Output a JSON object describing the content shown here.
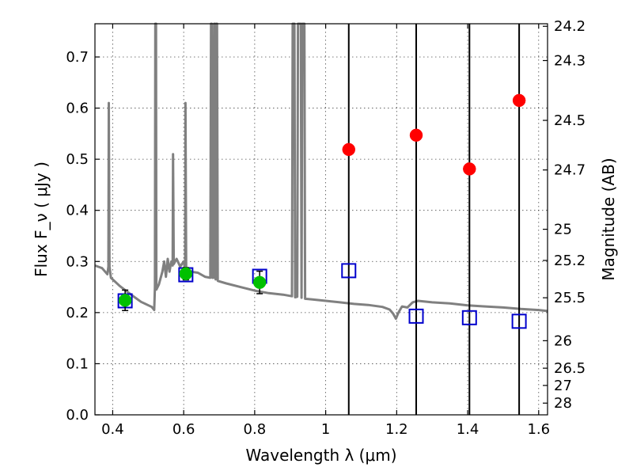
{
  "chart_data": {
    "type": "scatter",
    "title": "",
    "xlabel": "Wavelength  λ (μm)",
    "ylabel": "Flux  F_ν  ( μJy )",
    "ylabel_right": "Magnitude (AB)",
    "xlim": [
      0.35,
      1.625
    ],
    "ylim": [
      0.0,
      0.765
    ],
    "grid": true,
    "x_ticks": [
      {
        "value": 0.4,
        "label": "0.4"
      },
      {
        "value": 0.6,
        "label": "0.6"
      },
      {
        "value": 0.8,
        "label": "0.8"
      },
      {
        "value": 1.0,
        "label": "1"
      },
      {
        "value": 1.2,
        "label": "1.2"
      },
      {
        "value": 1.4,
        "label": "1.4"
      },
      {
        "value": 1.6,
        "label": "1.6"
      }
    ],
    "y_ticks": [
      {
        "value": 0.0,
        "label": "0.0"
      },
      {
        "value": 0.1,
        "label": "0.1"
      },
      {
        "value": 0.2,
        "label": "0.2"
      },
      {
        "value": 0.3,
        "label": "0.3"
      },
      {
        "value": 0.4,
        "label": "0.4"
      },
      {
        "value": 0.5,
        "label": "0.5"
      },
      {
        "value": 0.6,
        "label": "0.6"
      },
      {
        "value": 0.7,
        "label": "0.7"
      }
    ],
    "right_ticks": [
      {
        "label": "24.2",
        "flux": 0.76
      },
      {
        "label": "24.3",
        "flux": 0.693
      },
      {
        "label": "24.5",
        "flux": 0.576
      },
      {
        "label": "24.7",
        "flux": 0.479
      },
      {
        "label": "25",
        "flux": 0.363
      },
      {
        "label": "25.2",
        "flux": 0.302
      },
      {
        "label": "25.5",
        "flux": 0.229
      },
      {
        "label": "26",
        "flux": 0.145
      },
      {
        "label": "26.5",
        "flux": 0.0912
      },
      {
        "label": "27",
        "flux": 0.0575
      },
      {
        "label": "28",
        "flux": 0.0229
      }
    ],
    "vertical_lines": [
      1.065,
      1.255,
      1.405,
      1.545
    ],
    "series": [
      {
        "marker": "square-open",
        "color": "#0000cc",
        "points": [
          {
            "x": 0.435,
            "y": 0.223
          },
          {
            "x": 0.606,
            "y": 0.274
          },
          {
            "x": 0.814,
            "y": 0.271
          },
          {
            "x": 1.065,
            "y": 0.282
          },
          {
            "x": 1.255,
            "y": 0.193
          },
          {
            "x": 1.405,
            "y": 0.19
          },
          {
            "x": 1.545,
            "y": 0.183
          }
        ]
      },
      {
        "marker": "circle-filled",
        "color": "#00c000",
        "points": [
          {
            "x": 0.435,
            "y": 0.224,
            "yerr": 0.02
          },
          {
            "x": 0.606,
            "y": 0.276,
            "yerr": 0.012
          },
          {
            "x": 0.814,
            "y": 0.259,
            "yerr": 0.022
          }
        ]
      },
      {
        "marker": "circle-filled",
        "color": "#ff0000",
        "points": [
          {
            "x": 1.065,
            "y": 0.519
          },
          {
            "x": 1.255,
            "y": 0.547
          },
          {
            "x": 1.405,
            "y": 0.481
          },
          {
            "x": 1.545,
            "y": 0.615
          }
        ]
      },
      {
        "marker": "line",
        "color": "#808080",
        "points": [
          [
            0.35,
            0.292
          ],
          [
            0.37,
            0.287
          ],
          [
            0.385,
            0.275
          ],
          [
            0.388,
            0.29
          ],
          [
            0.389,
            0.61
          ],
          [
            0.391,
            0.29
          ],
          [
            0.395,
            0.268
          ],
          [
            0.42,
            0.252
          ],
          [
            0.45,
            0.236
          ],
          [
            0.48,
            0.221
          ],
          [
            0.51,
            0.211
          ],
          [
            0.517,
            0.205
          ],
          [
            0.519,
            0.25
          ],
          [
            0.52,
            0.765
          ],
          [
            0.522,
            0.765
          ],
          [
            0.523,
            0.245
          ],
          [
            0.53,
            0.255
          ],
          [
            0.54,
            0.28
          ],
          [
            0.545,
            0.3
          ],
          [
            0.55,
            0.27
          ],
          [
            0.555,
            0.305
          ],
          [
            0.56,
            0.28
          ],
          [
            0.565,
            0.3
          ],
          [
            0.569,
            0.292
          ],
          [
            0.57,
            0.51
          ],
          [
            0.572,
            0.295
          ],
          [
            0.58,
            0.305
          ],
          [
            0.59,
            0.29
          ],
          [
            0.6,
            0.3
          ],
          [
            0.604,
            0.285
          ],
          [
            0.605,
            0.61
          ],
          [
            0.607,
            0.285
          ],
          [
            0.62,
            0.28
          ],
          [
            0.64,
            0.278
          ],
          [
            0.66,
            0.27
          ],
          [
            0.675,
            0.268
          ],
          [
            0.677,
            0.765
          ],
          [
            0.679,
            0.765
          ],
          [
            0.681,
            0.268
          ],
          [
            0.684,
            0.268
          ],
          [
            0.686,
            0.765
          ],
          [
            0.688,
            0.765
          ],
          [
            0.69,
            0.265
          ],
          [
            0.692,
            0.765
          ],
          [
            0.694,
            0.765
          ],
          [
            0.696,
            0.262
          ],
          [
            0.72,
            0.257
          ],
          [
            0.76,
            0.25
          ],
          [
            0.8,
            0.243
          ],
          [
            0.84,
            0.238
          ],
          [
            0.88,
            0.235
          ],
          [
            0.905,
            0.232
          ],
          [
            0.907,
            0.765
          ],
          [
            0.912,
            0.765
          ],
          [
            0.914,
            0.23
          ],
          [
            0.92,
            0.231
          ],
          [
            0.922,
            0.765
          ],
          [
            0.93,
            0.765
          ],
          [
            0.932,
            0.229
          ],
          [
            0.934,
            0.765
          ],
          [
            0.94,
            0.765
          ],
          [
            0.942,
            0.227
          ],
          [
            0.96,
            0.226
          ],
          [
            1.0,
            0.223
          ],
          [
            1.04,
            0.22
          ],
          [
            1.08,
            0.217
          ],
          [
            1.12,
            0.215
          ],
          [
            1.16,
            0.211
          ],
          [
            1.18,
            0.206
          ],
          [
            1.19,
            0.198
          ],
          [
            1.198,
            0.188
          ],
          [
            1.205,
            0.2
          ],
          [
            1.215,
            0.212
          ],
          [
            1.23,
            0.21
          ],
          [
            1.245,
            0.22
          ],
          [
            1.26,
            0.223
          ],
          [
            1.3,
            0.22
          ],
          [
            1.35,
            0.218
          ],
          [
            1.4,
            0.214
          ],
          [
            1.45,
            0.212
          ],
          [
            1.5,
            0.21
          ],
          [
            1.55,
            0.207
          ],
          [
            1.6,
            0.205
          ],
          [
            1.625,
            0.203
          ]
        ]
      }
    ]
  }
}
